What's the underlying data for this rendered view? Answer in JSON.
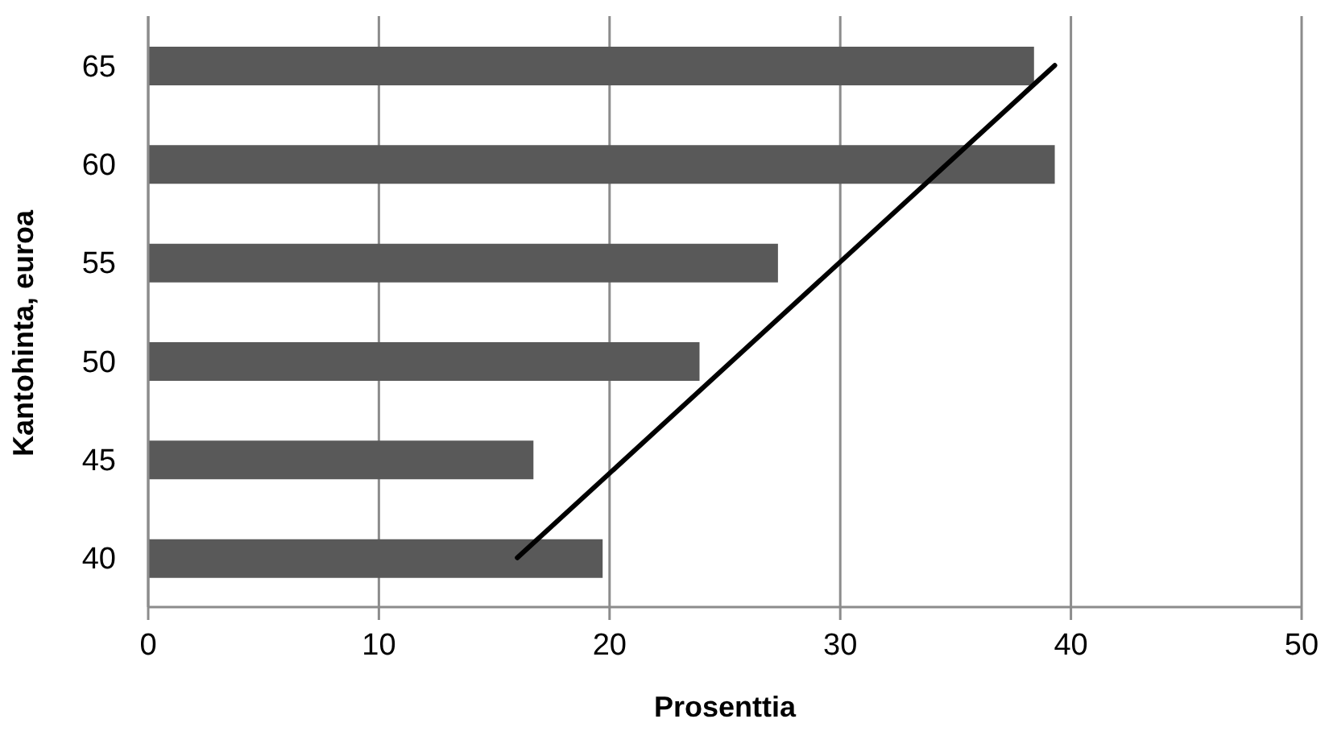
{
  "chart_data": {
    "type": "bar",
    "orientation": "horizontal",
    "xlabel": "Prosenttia",
    "ylabel": "Kantohinta, euroa",
    "categories": [
      "65",
      "60",
      "55",
      "50",
      "45",
      "40"
    ],
    "series": [
      {
        "color": "#595959",
        "values": [
          38.4,
          39.3,
          27.3,
          23.9,
          16.7,
          19.7
        ]
      },
      {
        "type": "line",
        "color": "#000000",
        "values": [
          39.3,
          null,
          null,
          null,
          null,
          16
        ]
      }
    ],
    "xlim": [
      0,
      50
    ],
    "xticks": [
      0,
      10,
      20,
      30,
      40,
      50
    ],
    "grid": "x"
  }
}
